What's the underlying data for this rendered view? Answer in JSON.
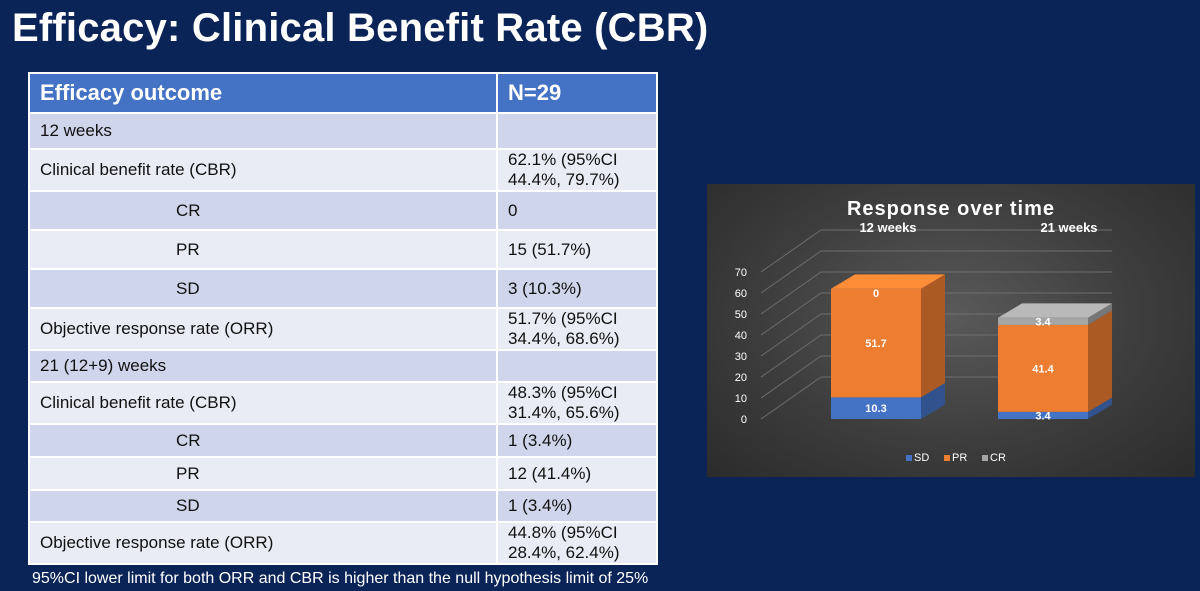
{
  "slide": {
    "title": "Efficacy: Clinical Benefit Rate (CBR)",
    "footnote": "95%CI lower limit for both ORR and CBR is higher than the null hypothesis limit of 25%"
  },
  "table": {
    "headers": [
      "Efficacy outcome",
      "N=29"
    ],
    "rows": [
      {
        "label": "12 weeks",
        "value": "",
        "indent": false
      },
      {
        "label": "Clinical benefit rate (CBR)",
        "value": "62.1% (95%CI 44.4%, 79.7%)",
        "indent": false
      },
      {
        "label": "CR",
        "value": "0",
        "indent": true
      },
      {
        "label": "PR",
        "value": "15 (51.7%)",
        "indent": true
      },
      {
        "label": "SD",
        "value": "3 (10.3%)",
        "indent": true
      },
      {
        "label": "Objective response rate (ORR)",
        "value": "51.7% (95%CI 34.4%, 68.6%)",
        "indent": false
      },
      {
        "label": "21 (12+9) weeks",
        "value": "",
        "indent": false
      },
      {
        "label": "Clinical benefit rate (CBR)",
        "value": "48.3% (95%CI 31.4%, 65.6%)",
        "indent": false
      },
      {
        "label": "CR",
        "value": "1 (3.4%)",
        "indent": true
      },
      {
        "label": "PR",
        "value": "12 (41.4%)",
        "indent": true
      },
      {
        "label": "SD",
        "value": "1 (3.4%)",
        "indent": true
      },
      {
        "label": "Objective response rate (ORR)",
        "value": "44.8% (95%CI 28.4%, 62.4%)",
        "indent": false
      }
    ]
  },
  "chart_data": {
    "type": "bar",
    "stacked": true,
    "title": "Response  over time",
    "categories": [
      "12 weeks",
      "21 weeks"
    ],
    "series": [
      {
        "name": "SD",
        "values": [
          10.3,
          3.4
        ],
        "labels": [
          "10.3",
          "3.4"
        ],
        "color": "#4472c4"
      },
      {
        "name": "PR",
        "values": [
          51.7,
          41.4
        ],
        "labels": [
          "51.7",
          "41.4"
        ],
        "color": "#ed7d31"
      },
      {
        "name": "CR",
        "values": [
          0,
          3.4
        ],
        "labels": [
          "0",
          "3.4"
        ],
        "color": "#a5a5a5"
      }
    ],
    "yticks": [
      "0",
      "10",
      "20",
      "30",
      "40",
      "50",
      "60",
      "70"
    ],
    "ylim": [
      0,
      70
    ],
    "legend_position": "bottom",
    "grid": true
  }
}
